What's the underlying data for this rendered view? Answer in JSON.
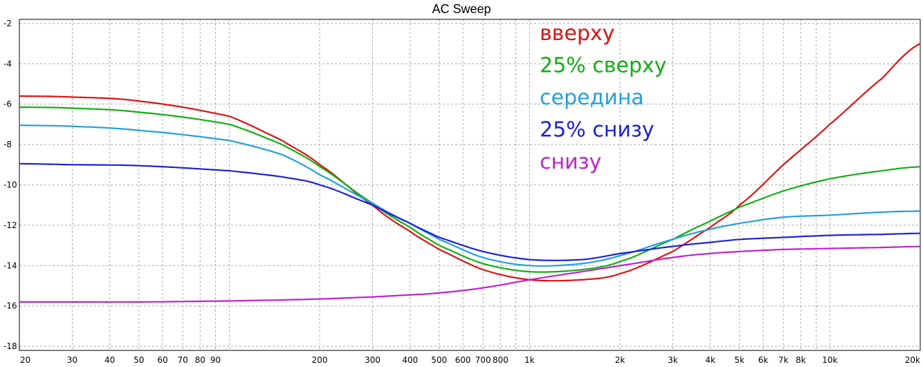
{
  "chart_data": {
    "type": "line",
    "title": "AC Sweep",
    "xlabel": "",
    "ylabel": "",
    "x_scale": "log",
    "xlim": [
      20,
      20000
    ],
    "ylim": [
      -18.2,
      -1.8
    ],
    "grid": true,
    "legend_placement": "top-center",
    "x_tick_values": [
      20,
      30,
      40,
      50,
      60,
      70,
      80,
      90,
      200,
      300,
      400,
      500,
      600,
      700,
      800,
      1000,
      2000,
      3000,
      4000,
      5000,
      6000,
      7000,
      8000,
      10000,
      20000
    ],
    "x_tick_labels": [
      "20",
      "30",
      "40",
      "50",
      "60",
      "70",
      "80",
      "90",
      "200",
      "300",
      "400",
      "500",
      "600",
      "700",
      "800",
      "1k",
      "2k",
      "3k",
      "4k",
      "5k",
      "6k",
      "7k",
      "8k",
      "10k",
      "20k"
    ],
    "y_tick_values": [
      -2,
      -4,
      -6,
      -8,
      -10,
      -12,
      -14,
      -16,
      -18
    ],
    "y_tick_labels": [
      "-2",
      "-4",
      "-6",
      "-8",
      "-10",
      "-12",
      "-14",
      "-16",
      "-18"
    ],
    "x": [
      20,
      30,
      50,
      100,
      150,
      200,
      300,
      400,
      500,
      700,
      1000,
      1500,
      2000,
      3000,
      4000,
      5000,
      7000,
      10000,
      15000,
      20000
    ],
    "series": [
      {
        "name": "вверху",
        "color": "#e01010",
        "values": [
          -5.6,
          -5.65,
          -5.85,
          -6.6,
          -7.8,
          -9.0,
          -11.0,
          -12.3,
          -13.2,
          -14.2,
          -14.7,
          -14.7,
          -14.4,
          -13.3,
          -12.1,
          -11.0,
          -9.0,
          -7.0,
          -4.7,
          -3.0
        ]
      },
      {
        "name": "25% сверху",
        "color": "#10b010",
        "values": [
          -6.15,
          -6.2,
          -6.4,
          -7.0,
          -8.0,
          -9.1,
          -10.9,
          -12.1,
          -13.0,
          -13.9,
          -14.3,
          -14.2,
          -13.8,
          -12.7,
          -11.8,
          -11.1,
          -10.3,
          -9.7,
          -9.3,
          -9.1
        ]
      },
      {
        "name": "середина",
        "color": "#20a0e0",
        "values": [
          -7.05,
          -7.1,
          -7.3,
          -7.8,
          -8.5,
          -9.5,
          -10.9,
          -11.9,
          -12.7,
          -13.6,
          -14.0,
          -13.9,
          -13.5,
          -12.7,
          -12.2,
          -11.9,
          -11.6,
          -11.5,
          -11.35,
          -11.3
        ]
      },
      {
        "name": "25% снизу",
        "color": "#1c20d8",
        "values": [
          -8.95,
          -9.0,
          -9.05,
          -9.3,
          -9.6,
          -10.0,
          -11.0,
          -11.9,
          -12.6,
          -13.3,
          -13.7,
          -13.7,
          -13.4,
          -13.05,
          -12.85,
          -12.7,
          -12.6,
          -12.5,
          -12.45,
          -12.4
        ]
      },
      {
        "name": "снизу",
        "color": "#c020d0",
        "values": [
          -15.8,
          -15.8,
          -15.8,
          -15.75,
          -15.7,
          -15.65,
          -15.55,
          -15.45,
          -15.35,
          -15.1,
          -14.7,
          -14.3,
          -14.0,
          -13.6,
          -13.4,
          -13.3,
          -13.2,
          -13.15,
          -13.1,
          -13.05
        ]
      }
    ]
  }
}
